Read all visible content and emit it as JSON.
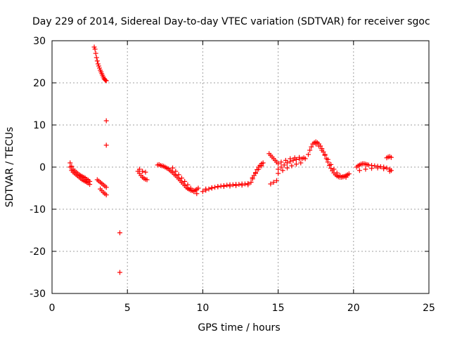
{
  "chart_data": {
    "type": "scatter",
    "title": "Day 229 of 2014, Sidereal Day-to-day VTEC variation (SDTVAR) for receiver sgoc",
    "xlabel": "GPS time / hours",
    "ylabel": "SDTVAR / TECUs",
    "xlim": [
      0,
      25
    ],
    "ylim": [
      -30,
      30
    ],
    "xticks": [
      0,
      5,
      10,
      15,
      20,
      25
    ],
    "yticks": [
      -30,
      -20,
      -10,
      0,
      10,
      20,
      30
    ],
    "grid": true,
    "marker": "+",
    "color": "#ff0000",
    "series": [
      {
        "name": "SDTVAR",
        "x": [
          1.2,
          1.3,
          1.4,
          1.5,
          1.6,
          1.7,
          1.8,
          1.9,
          2.0,
          2.1,
          2.2,
          2.3,
          2.4,
          2.5,
          1.2,
          1.3,
          1.4,
          1.5,
          1.6,
          1.7,
          1.8,
          1.9,
          2.0,
          2.1,
          2.2,
          2.3,
          2.4,
          2.5,
          2.8,
          2.85,
          2.9,
          2.95,
          3.0,
          3.05,
          3.1,
          3.15,
          3.2,
          3.25,
          3.3,
          3.35,
          3.4,
          3.45,
          3.5,
          3.55,
          3.6,
          3.6,
          3.6,
          3.0,
          3.1,
          3.2,
          3.3,
          3.4,
          3.5,
          3.6,
          3.2,
          3.3,
          3.4,
          3.5,
          3.6,
          4.5,
          4.5,
          5.7,
          5.8,
          5.9,
          6.0,
          6.1,
          6.2,
          6.3,
          5.8,
          6.0,
          6.2,
          7.0,
          7.1,
          7.2,
          7.3,
          7.4,
          7.5,
          7.6,
          7.7,
          7.8,
          7.9,
          8.0,
          8.1,
          8.2,
          8.3,
          8.4,
          8.5,
          8.6,
          8.7,
          8.8,
          8.9,
          9.0,
          9.1,
          9.2,
          9.3,
          9.4,
          9.5,
          9.6,
          9.7,
          8.0,
          8.2,
          8.4,
          8.6,
          8.8,
          9.0,
          9.2,
          9.4,
          9.6,
          10.0,
          10.2,
          10.4,
          10.6,
          10.8,
          11.0,
          11.2,
          11.4,
          11.6,
          11.8,
          12.0,
          12.2,
          12.4,
          12.6,
          12.8,
          13.0,
          10.2,
          10.6,
          11.0,
          11.4,
          11.8,
          12.2,
          12.6,
          13.0,
          13.2,
          13.3,
          13.4,
          13.5,
          13.6,
          13.7,
          13.8,
          13.9,
          14.0,
          13.3,
          13.5,
          13.7,
          13.9,
          14.4,
          14.5,
          14.6,
          14.7,
          14.8,
          14.9,
          15.0,
          14.5,
          14.7,
          14.9,
          15.0,
          15.2,
          15.4,
          15.6,
          15.8,
          16.0,
          16.2,
          16.4,
          16.6,
          16.8,
          15.2,
          15.5,
          15.8,
          16.1,
          16.4,
          16.7,
          15.0,
          15.3,
          15.6,
          15.9,
          16.2,
          16.5,
          17.0,
          17.1,
          17.2,
          17.3,
          17.4,
          17.5,
          17.6,
          17.7,
          17.8,
          17.9,
          18.0,
          18.1,
          18.2,
          18.3,
          18.4,
          18.5,
          18.6,
          18.7,
          18.8,
          18.9,
          19.0,
          19.1,
          19.2,
          19.3,
          19.4,
          19.5,
          19.6,
          19.7,
          17.5,
          17.7,
          17.9,
          18.1,
          18.3,
          18.5,
          18.7,
          18.9,
          19.1,
          19.3,
          19.5,
          20.2,
          20.3,
          20.4,
          20.5,
          20.6,
          20.7,
          20.8,
          20.9,
          21.0,
          21.2,
          21.4,
          21.6,
          21.8,
          22.0,
          22.2,
          22.4,
          22.5,
          20.4,
          20.8,
          21.2,
          21.6,
          22.0,
          22.4,
          22.2,
          22.3,
          22.4,
          22.5
        ],
        "y": [
          1.0,
          0.2,
          -0.5,
          -0.9,
          -1.2,
          -1.5,
          -1.8,
          -2.0,
          -2.2,
          -2.4,
          -2.6,
          -2.9,
          -3.1,
          -3.4,
          0.0,
          -0.8,
          -1.2,
          -1.5,
          -1.8,
          -2.1,
          -2.4,
          -2.7,
          -3.0,
          -3.2,
          -3.4,
          -3.6,
          -3.8,
          -4.1,
          28.5,
          28.0,
          27.0,
          26.0,
          25.2,
          24.5,
          24.0,
          23.5,
          23.0,
          22.6,
          22.2,
          21.8,
          21.4,
          21.0,
          20.8,
          20.6,
          11.0,
          5.2,
          20.5,
          -3.0,
          -3.3,
          -3.6,
          -3.9,
          -4.2,
          -4.5,
          -4.8,
          -5.2,
          -5.6,
          -6.0,
          -6.3,
          -6.6,
          -15.6,
          -25.0,
          -1.0,
          -1.5,
          -2.0,
          -2.4,
          -2.7,
          -2.9,
          -3.0,
          -0.5,
          -1.0,
          -1.2,
          0.5,
          0.6,
          0.4,
          0.3,
          0.2,
          0.0,
          -0.2,
          -0.4,
          -0.7,
          -1.0,
          -1.3,
          -1.7,
          -2.0,
          -2.4,
          -2.8,
          -3.2,
          -3.6,
          -4.0,
          -4.4,
          -4.8,
          -5.1,
          -5.3,
          -5.5,
          -5.6,
          -5.6,
          -5.5,
          -5.3,
          -5.0,
          -0.2,
          -1.0,
          -1.8,
          -2.6,
          -3.4,
          -4.2,
          -5.0,
          -5.8,
          -6.3,
          -5.8,
          -5.5,
          -5.2,
          -5.0,
          -4.8,
          -4.6,
          -4.5,
          -4.4,
          -4.3,
          -4.2,
          -4.2,
          -4.1,
          -4.1,
          -4.0,
          -4.0,
          -3.9,
          -5.2,
          -4.9,
          -4.7,
          -4.6,
          -4.5,
          -4.4,
          -4.3,
          -4.2,
          -3.6,
          -2.8,
          -2.0,
          -1.3,
          -0.6,
          0.0,
          0.4,
          0.8,
          1.0,
          -2.5,
          -1.5,
          -0.5,
          0.3,
          3.2,
          2.8,
          2.4,
          2.0,
          1.6,
          1.2,
          0.8,
          -4.0,
          -3.6,
          -3.2,
          -0.5,
          0.0,
          0.5,
          1.0,
          1.3,
          1.6,
          1.8,
          1.9,
          2.0,
          2.0,
          1.2,
          1.6,
          2.0,
          2.2,
          2.3,
          2.2,
          -1.5,
          -0.8,
          -0.2,
          0.3,
          0.7,
          1.0,
          3.0,
          4.0,
          4.8,
          5.5,
          5.8,
          6.0,
          5.8,
          5.5,
          5.0,
          4.4,
          3.6,
          2.8,
          2.0,
          1.2,
          0.4,
          -0.3,
          -0.9,
          -1.4,
          -1.8,
          -2.1,
          -2.3,
          -2.4,
          -2.4,
          -2.3,
          -2.2,
          -2.0,
          -1.8,
          -1.6,
          5.5,
          5.0,
          4.0,
          3.0,
          1.8,
          0.6,
          -0.5,
          -1.4,
          -2.0,
          -2.3,
          -2.4,
          0.0,
          0.3,
          0.5,
          0.7,
          0.8,
          0.8,
          0.7,
          0.6,
          0.5,
          0.4,
          0.3,
          0.2,
          0.1,
          0.0,
          -0.2,
          -0.5,
          -0.8,
          -0.8,
          -0.5,
          -0.3,
          -0.2,
          -0.4,
          -1.0,
          2.2,
          2.4,
          2.5,
          2.3
        ]
      }
    ]
  }
}
